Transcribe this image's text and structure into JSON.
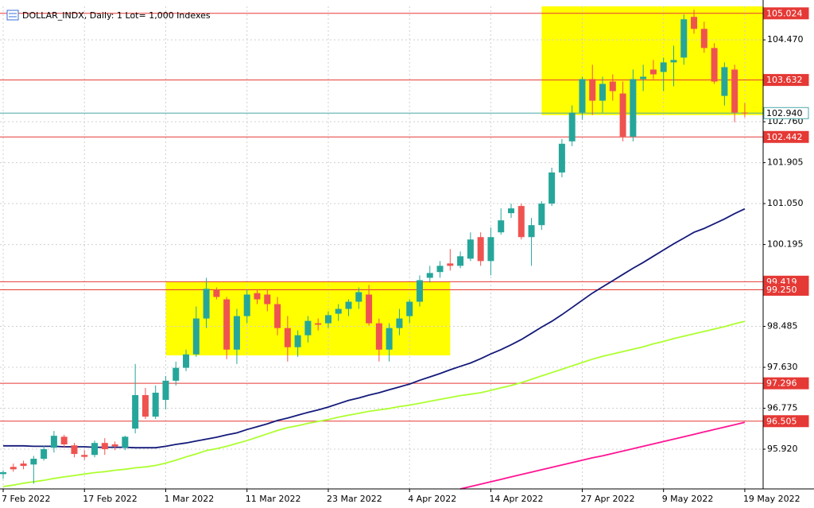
{
  "chart_data": {
    "type": "candlestick",
    "title": "DOLLAR_INDX, Daily:  1 Lot= 1,000 Indexes",
    "categories": [
      "7 Feb 2022",
      null,
      null,
      null,
      null,
      null,
      null,
      null,
      "17 Feb 2022",
      null,
      null,
      null,
      null,
      null,
      null,
      null,
      "1 Mar 2022",
      null,
      null,
      null,
      null,
      null,
      null,
      null,
      "11 Mar 2022",
      null,
      null,
      null,
      null,
      null,
      null,
      null,
      "23 Mar 2022",
      null,
      null,
      null,
      null,
      null,
      null,
      null,
      "4 Apr 2022",
      null,
      null,
      null,
      null,
      null,
      null,
      null,
      "14 Apr 2022",
      null,
      null,
      null,
      null,
      null,
      null,
      null,
      null,
      "27 Apr 2022",
      null,
      null,
      null,
      null,
      null,
      null,
      null,
      "9 May 2022",
      null,
      null,
      null,
      null,
      null,
      null,
      null,
      "19 May 2022"
    ],
    "open": [
      95.4,
      95.55,
      95.62,
      95.6,
      95.72,
      95.95,
      96.18,
      96.0,
      95.8,
      95.8,
      96.05,
      96.02,
      95.95,
      96.35,
      97.05,
      96.6,
      96.95,
      97.35,
      97.62,
      97.9,
      98.65,
      99.25,
      99.05,
      98.0,
      98.7,
      99.18,
      99.15,
      98.95,
      98.45,
      98.05,
      98.3,
      98.55,
      98.55,
      98.75,
      98.85,
      99.0,
      99.15,
      98.55,
      98.0,
      98.45,
      98.7,
      99.0,
      99.5,
      99.62,
      99.8,
      99.75,
      99.9,
      100.35,
      99.85,
      100.45,
      100.85,
      101.0,
      100.35,
      100.6,
      101.05,
      101.7,
      102.35,
      102.95,
      103.65,
      103.2,
      103.6,
      103.35,
      102.45,
      103.65,
      103.85,
      103.8,
      104.0,
      104.1,
      104.95,
      104.7,
      104.3,
      103.3,
      103.85,
      102.95
    ],
    "high": [
      95.48,
      95.62,
      95.68,
      95.78,
      96.0,
      96.3,
      96.22,
      96.05,
      95.9,
      96.1,
      96.15,
      96.08,
      96.2,
      97.7,
      97.2,
      97.25,
      97.45,
      97.75,
      98.0,
      98.9,
      99.5,
      99.3,
      99.1,
      98.85,
      99.25,
      99.25,
      99.25,
      99.1,
      98.7,
      98.4,
      98.7,
      98.65,
      98.8,
      98.95,
      99.05,
      99.3,
      99.35,
      98.65,
      98.55,
      98.85,
      99.05,
      99.55,
      99.75,
      99.85,
      100.1,
      100.05,
      100.45,
      100.45,
      100.55,
      100.95,
      101.05,
      101.05,
      100.75,
      101.1,
      101.8,
      102.4,
      103.1,
      103.7,
      103.95,
      103.7,
      103.75,
      103.6,
      103.85,
      103.95,
      104.05,
      104.1,
      104.35,
      105.0,
      105.1,
      104.85,
      104.4,
      104.0,
      103.95,
      103.15
    ],
    "low": [
      95.3,
      95.45,
      95.5,
      95.2,
      95.68,
      95.85,
      95.95,
      95.75,
      95.7,
      95.75,
      95.8,
      95.9,
      95.9,
      96.25,
      96.55,
      96.55,
      96.75,
      97.25,
      97.55,
      97.85,
      98.45,
      99.05,
      97.8,
      97.7,
      98.55,
      98.95,
      98.8,
      98.3,
      97.75,
      97.85,
      98.15,
      98.4,
      98.45,
      98.6,
      98.7,
      98.85,
      98.5,
      97.75,
      97.75,
      98.3,
      98.55,
      98.9,
      99.4,
      99.5,
      99.65,
      99.7,
      99.85,
      99.75,
      99.55,
      100.4,
      100.75,
      100.3,
      99.75,
      100.5,
      101.0,
      101.6,
      102.25,
      102.8,
      102.9,
      102.95,
      103.2,
      102.35,
      102.35,
      103.4,
      103.65,
      103.4,
      103.5,
      103.95,
      104.6,
      104.2,
      103.55,
      103.1,
      102.75,
      102.85
    ],
    "close": [
      95.44,
      95.5,
      95.57,
      95.72,
      95.92,
      96.2,
      96.02,
      95.82,
      95.76,
      96.05,
      95.92,
      95.98,
      96.18,
      97.05,
      96.6,
      97.1,
      97.35,
      97.62,
      97.9,
      98.65,
      99.27,
      99.1,
      98.0,
      98.7,
      99.15,
      99.05,
      98.95,
      98.45,
      98.05,
      98.3,
      98.6,
      98.52,
      98.72,
      98.85,
      99.0,
      99.2,
      98.55,
      98.0,
      98.45,
      98.65,
      99.0,
      99.45,
      99.6,
      99.75,
      99.75,
      99.95,
      100.3,
      99.85,
      100.35,
      100.7,
      100.95,
      100.35,
      100.6,
      101.05,
      101.7,
      102.3,
      102.95,
      103.65,
      103.2,
      103.55,
      103.4,
      102.45,
      103.65,
      103.7,
      103.75,
      104.0,
      104.05,
      104.9,
      104.7,
      104.3,
      103.6,
      103.9,
      102.95,
      102.94
    ],
    "up_color": "#26a69a",
    "down_color": "#ef5350",
    "indicators": [
      {
        "color": "#141a7a",
        "values": [
          95.99,
          95.99,
          95.99,
          95.98,
          95.98,
          95.98,
          95.97,
          95.97,
          95.97,
          95.96,
          95.96,
          95.96,
          95.96,
          95.95,
          95.95,
          95.95,
          95.98,
          96.02,
          96.05,
          96.09,
          96.13,
          96.17,
          96.22,
          96.26,
          96.33,
          96.39,
          96.45,
          96.52,
          96.57,
          96.63,
          96.69,
          96.74,
          96.8,
          96.87,
          96.94,
          96.99,
          97.05,
          97.1,
          97.16,
          97.22,
          97.28,
          97.36,
          97.43,
          97.5,
          97.58,
          97.65,
          97.72,
          97.81,
          97.91,
          98.0,
          98.1,
          98.21,
          98.34,
          98.47,
          98.59,
          98.73,
          98.88,
          99.03,
          99.18,
          99.31,
          99.44,
          99.57,
          99.7,
          99.82,
          99.95,
          100.08,
          100.21,
          100.33,
          100.45,
          100.53,
          100.63,
          100.73,
          100.84,
          100.94
        ]
      },
      {
        "color": "#adff2f",
        "values": [
          95.14,
          95.17,
          95.21,
          95.24,
          95.27,
          95.31,
          95.34,
          95.37,
          95.4,
          95.43,
          95.45,
          95.48,
          95.5,
          95.53,
          95.55,
          95.58,
          95.63,
          95.69,
          95.76,
          95.82,
          95.89,
          95.93,
          95.98,
          96.04,
          96.1,
          96.17,
          96.24,
          96.31,
          96.37,
          96.41,
          96.46,
          96.5,
          96.54,
          96.59,
          96.63,
          96.67,
          96.71,
          96.74,
          96.77,
          96.81,
          96.84,
          96.88,
          96.92,
          96.96,
          97.0,
          97.04,
          97.07,
          97.1,
          97.15,
          97.2,
          97.25,
          97.31,
          97.38,
          97.45,
          97.52,
          97.59,
          97.66,
          97.73,
          97.8,
          97.86,
          97.91,
          97.96,
          98.01,
          98.06,
          98.12,
          98.17,
          98.23,
          98.28,
          98.33,
          98.38,
          98.43,
          98.48,
          98.54,
          98.59
        ]
      },
      {
        "color": "#ff1493",
        "values": [
          null,
          null,
          null,
          null,
          null,
          null,
          null,
          null,
          null,
          null,
          null,
          null,
          null,
          null,
          null,
          null,
          null,
          null,
          null,
          null,
          null,
          null,
          null,
          null,
          null,
          null,
          null,
          null,
          null,
          null,
          null,
          null,
          null,
          null,
          null,
          null,
          null,
          null,
          null,
          null,
          null,
          null,
          null,
          null,
          null,
          95.09,
          95.14,
          95.19,
          95.24,
          95.29,
          95.34,
          95.39,
          95.44,
          95.49,
          95.54,
          95.59,
          95.64,
          95.69,
          95.74,
          95.78,
          95.83,
          95.88,
          95.93,
          95.98,
          96.03,
          96.08,
          96.13,
          96.18,
          96.23,
          96.28,
          96.33,
          96.38,
          96.43,
          96.48
        ]
      }
    ],
    "zones": [
      {
        "span": [
          16,
          44
        ],
        "range": [
          97.88,
          99.42
        ],
        "color": "#ffff00"
      },
      {
        "span": [
          53,
          75
        ],
        "range": [
          102.9,
          105.17
        ],
        "color": "#ffff00"
      }
    ],
    "levels": [
      {
        "value": 105.024,
        "color": "#e53935",
        "fill": "#e53935"
      },
      {
        "value": 103.632,
        "color": "#e53935",
        "fill": "#e53935"
      },
      {
        "value": 102.94,
        "label": "102.940",
        "color": "#4fa8a8",
        "fill": "#ffffff"
      },
      {
        "value": 102.442,
        "color": "#e53935",
        "fill": "#e53935"
      },
      {
        "value": 99.419,
        "color": "#e53935",
        "fill": "#e53935"
      },
      {
        "value": 99.25,
        "label": "99.250",
        "color": "#e53935",
        "fill": "#e53935"
      },
      {
        "value": 97.296,
        "color": "#e53935",
        "fill": "#e53935"
      },
      {
        "value": 96.505,
        "color": "#e53935",
        "fill": "#e53935"
      }
    ],
    "ylim": [
      95.09,
      105.17
    ],
    "yticks": [
      {
        "value": 95.92,
        "label": "95.920"
      },
      96.775,
      {
        "value": 97.63,
        "label": "97.630"
      },
      98.485,
      100.195,
      {
        "value": 101.05,
        "label": "101.050"
      },
      101.905,
      {
        "value": 102.76,
        "label": "102.760"
      },
      {
        "value": 104.47,
        "label": "104.470"
      }
    ],
    "grid": true
  }
}
